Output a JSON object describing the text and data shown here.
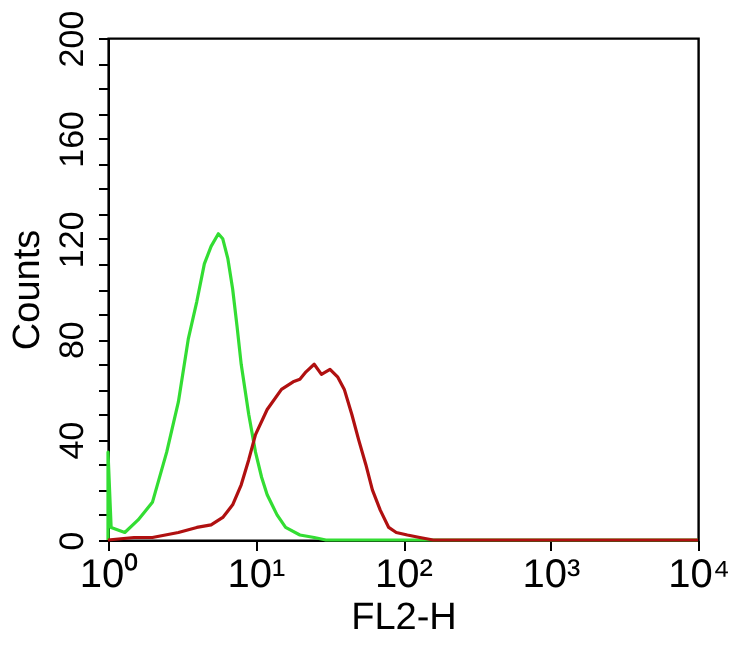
{
  "chart_data": {
    "type": "line",
    "xlabel": "FL2-H",
    "ylabel": "Counts",
    "log": "x",
    "xlim": [
      1,
      10000
    ],
    "ylim": [
      0,
      200
    ],
    "xticks": [
      {
        "value": 1,
        "label": "10⁰"
      },
      {
        "value": 10,
        "label": "10¹"
      },
      {
        "value": 100,
        "label": "10²"
      },
      {
        "value": 1000,
        "label": "10³"
      },
      {
        "value": 10000,
        "label": "10⁴"
      }
    ],
    "yticks": [
      0,
      {
        "value": 10,
        "label": null
      },
      {
        "value": 20,
        "label": null
      },
      {
        "value": 30,
        "label": null
      },
      40,
      {
        "value": 50,
        "label": null
      },
      {
        "value": 60,
        "label": null
      },
      {
        "value": 70,
        "label": null
      },
      80,
      {
        "value": 90,
        "label": null
      },
      {
        "value": 100,
        "label": null
      },
      {
        "value": 110,
        "label": null
      },
      120,
      {
        "value": 130,
        "label": null
      },
      {
        "value": 140,
        "label": null
      },
      {
        "value": 150,
        "label": null
      },
      160,
      {
        "value": 170,
        "label": null
      },
      {
        "value": 180,
        "label": null
      },
      {
        "value": 190,
        "label": null
      },
      200
    ],
    "grid": false,
    "legend": false,
    "line_style": "solid",
    "series": [
      {
        "color": "#33dd33",
        "x": [
          1,
          1,
          1.05,
          1.3,
          1.6,
          2,
          2.5,
          3,
          3.5,
          4,
          4.5,
          5,
          5.6,
          6,
          6.5,
          7,
          7.5,
          8,
          9,
          10,
          11,
          12,
          14,
          16,
          20,
          25,
          30,
          50,
          100,
          200,
          10000
        ],
        "values": [
          0,
          35,
          5,
          3,
          8,
          15,
          35,
          55,
          80,
          95,
          110,
          117,
          122,
          120,
          112,
          100,
          85,
          70,
          50,
          35,
          25,
          18,
          10,
          5,
          2,
          1,
          0,
          0,
          0,
          0,
          0
        ]
      },
      {
        "color": "#b01010",
        "x": [
          1,
          1.5,
          2,
          3,
          4,
          5,
          6,
          7,
          8,
          9,
          10,
          12,
          15,
          18,
          20,
          22,
          25,
          28,
          32,
          36,
          40,
          45,
          50,
          56,
          62,
          70,
          80,
          90,
          107,
          130,
          160,
          10000
        ],
        "values": [
          0,
          1,
          1,
          3,
          5,
          6,
          9,
          14,
          22,
          32,
          42,
          52,
          60,
          63,
          64,
          67,
          70,
          66,
          68,
          65,
          60,
          50,
          40,
          30,
          20,
          12,
          5,
          3,
          2,
          1,
          0,
          0
        ]
      }
    ]
  }
}
